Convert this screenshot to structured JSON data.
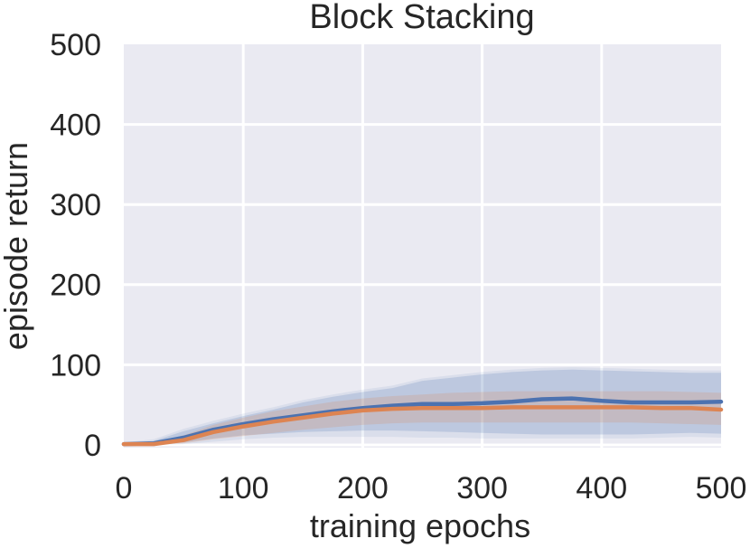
{
  "chart_data": {
    "type": "line",
    "title": "Block Stacking",
    "xlabel": "training epochs",
    "ylabel": "episode return",
    "xlim": [
      0,
      500
    ],
    "ylim": [
      0,
      500
    ],
    "xticks": [
      0,
      100,
      200,
      300,
      400,
      500
    ],
    "yticks": [
      0,
      100,
      200,
      300,
      400,
      500
    ],
    "grid": true,
    "legend": "none",
    "background_color": "#EAEAF2",
    "grid_color": "#FFFFFF",
    "text_color": "#262626",
    "x": [
      0,
      25,
      50,
      75,
      100,
      125,
      150,
      175,
      200,
      225,
      250,
      275,
      300,
      325,
      350,
      375,
      400,
      425,
      450,
      475,
      500
    ],
    "series": [
      {
        "name": "blue",
        "color": "#4C72B0",
        "line_width": 4.5,
        "band_opacity": 0.2,
        "outer_band_opacity": 0.1,
        "mean": [
          1,
          2,
          9,
          19,
          26,
          32,
          37,
          42,
          46,
          49,
          51,
          51,
          52,
          54,
          57,
          58,
          55,
          53,
          53,
          53,
          54
        ],
        "upper": [
          2,
          5,
          17,
          27,
          36,
          44,
          53,
          60,
          66,
          71,
          80,
          84,
          88,
          91,
          93,
          94,
          93,
          92,
          91,
          90,
          90
        ],
        "lower": [
          0,
          0,
          3,
          8,
          12,
          14,
          16,
          17,
          18,
          18,
          17,
          16,
          15,
          14,
          13,
          13,
          13,
          13,
          14,
          15,
          14
        ],
        "outer_upper": [
          3,
          7,
          20,
          30,
          39,
          47,
          56,
          63,
          69,
          74,
          83,
          87,
          91,
          94,
          96,
          97,
          96,
          95,
          94,
          93,
          93
        ],
        "outer_lower": [
          0,
          0,
          1,
          4,
          7,
          9,
          10,
          10,
          10,
          10,
          9,
          9,
          8,
          8,
          8,
          8,
          8,
          8,
          9,
          10,
          9
        ]
      },
      {
        "name": "orange",
        "color": "#DD8452",
        "line_width": 4.5,
        "band_opacity": 0.2,
        "mean": [
          1,
          1,
          6,
          16,
          23,
          29,
          34,
          39,
          43,
          45,
          46,
          46,
          46,
          47,
          47,
          47,
          47,
          47,
          46,
          46,
          44
        ],
        "upper": [
          2,
          3,
          12,
          25,
          34,
          42,
          48,
          54,
          58,
          61,
          63,
          65,
          66,
          67,
          67,
          67,
          67,
          67,
          67,
          66,
          65
        ],
        "lower": [
          0,
          0,
          2,
          7,
          11,
          15,
          19,
          22,
          25,
          27,
          28,
          28,
          28,
          28,
          28,
          28,
          28,
          28,
          27,
          26,
          25
        ]
      }
    ]
  }
}
